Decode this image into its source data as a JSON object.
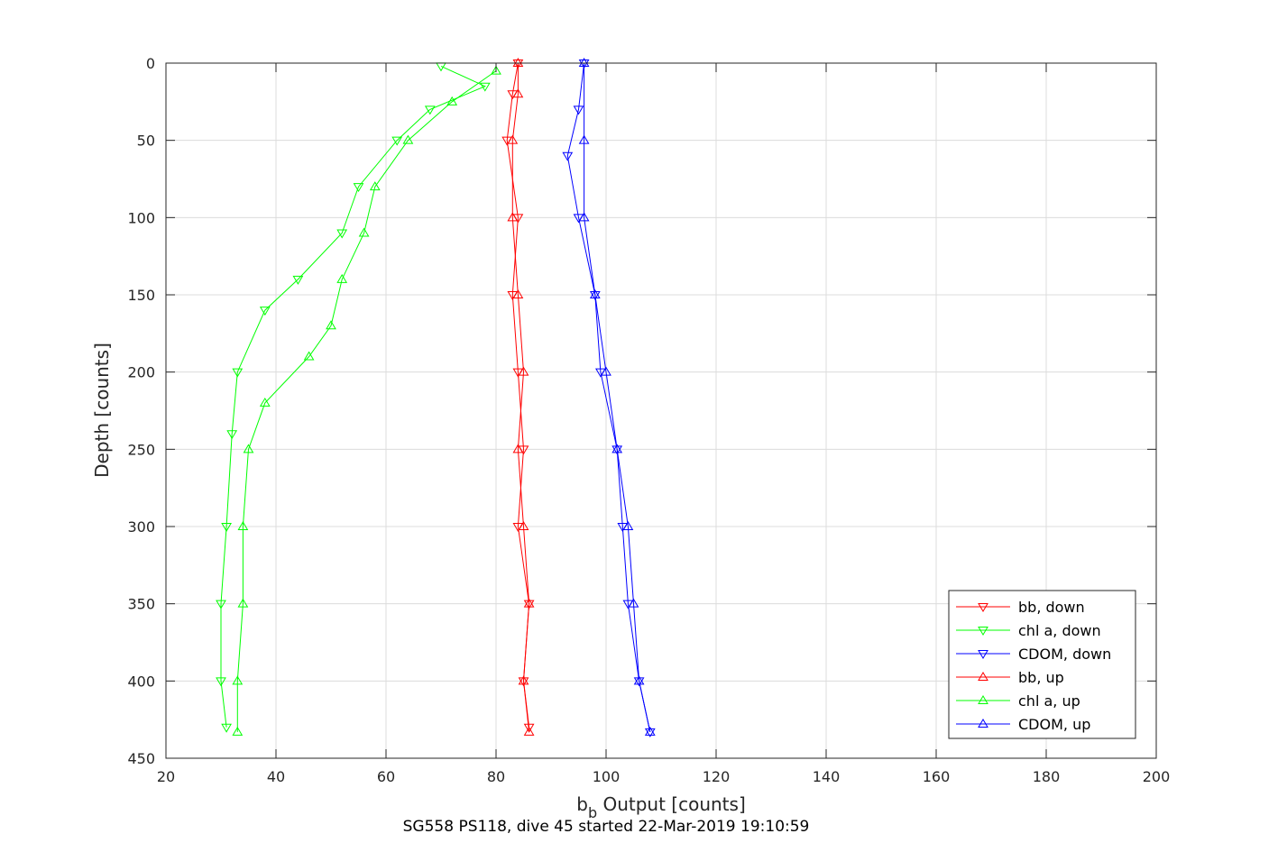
{
  "chart_data": {
    "type": "line",
    "xlabel_main": "b",
    "xlabel_sub": "b",
    "xlabel_rest": " Output [counts]",
    "ylabel": "Depth [counts]",
    "caption": "SG558 PS118, dive 45 started 22-Mar-2019 19:10:59",
    "xlim": [
      20,
      200
    ],
    "ylim": [
      0,
      450
    ],
    "y_reversed": true,
    "grid": true,
    "legend_position": "bottom-right",
    "x_ticks": [
      "20",
      "40",
      "60",
      "80",
      "100",
      "120",
      "140",
      "160",
      "180",
      "200"
    ],
    "y_ticks": [
      "0",
      "50",
      "100",
      "150",
      "200",
      "250",
      "300",
      "350",
      "400",
      "450"
    ],
    "series": [
      {
        "name": "bb, down",
        "color": "#ff0000",
        "marker": "triangle-down",
        "points": [
          [
            84,
            0
          ],
          [
            83,
            20
          ],
          [
            82,
            50
          ],
          [
            84,
            100
          ],
          [
            83,
            150
          ],
          [
            84,
            200
          ],
          [
            85,
            250
          ],
          [
            84,
            300
          ],
          [
            86,
            350
          ],
          [
            85,
            400
          ],
          [
            86,
            430
          ]
        ]
      },
      {
        "name": "chl a, down",
        "color": "#00ff00",
        "marker": "triangle-down",
        "points": [
          [
            70,
            2
          ],
          [
            78,
            15
          ],
          [
            68,
            30
          ],
          [
            62,
            50
          ],
          [
            55,
            80
          ],
          [
            52,
            110
          ],
          [
            44,
            140
          ],
          [
            38,
            160
          ],
          [
            33,
            200
          ],
          [
            32,
            240
          ],
          [
            31,
            300
          ],
          [
            30,
            350
          ],
          [
            30,
            400
          ],
          [
            31,
            430
          ]
        ]
      },
      {
        "name": "CDOM, down",
        "color": "#0000ff",
        "marker": "triangle-down",
        "points": [
          [
            96,
            0
          ],
          [
            95,
            30
          ],
          [
            93,
            60
          ],
          [
            95,
            100
          ],
          [
            98,
            150
          ],
          [
            99,
            200
          ],
          [
            102,
            250
          ],
          [
            103,
            300
          ],
          [
            104,
            350
          ],
          [
            106,
            400
          ],
          [
            108,
            433
          ]
        ]
      },
      {
        "name": "bb, up",
        "color": "#ff0000",
        "marker": "triangle-up",
        "points": [
          [
            86,
            433
          ],
          [
            85,
            400
          ],
          [
            86,
            350
          ],
          [
            85,
            300
          ],
          [
            84,
            250
          ],
          [
            85,
            200
          ],
          [
            84,
            150
          ],
          [
            83,
            100
          ],
          [
            83,
            50
          ],
          [
            84,
            20
          ],
          [
            84,
            0
          ]
        ]
      },
      {
        "name": "chl a, up",
        "color": "#00ff00",
        "marker": "triangle-up",
        "points": [
          [
            33,
            433
          ],
          [
            33,
            400
          ],
          [
            34,
            350
          ],
          [
            34,
            300
          ],
          [
            35,
            250
          ],
          [
            38,
            220
          ],
          [
            46,
            190
          ],
          [
            50,
            170
          ],
          [
            52,
            140
          ],
          [
            56,
            110
          ],
          [
            58,
            80
          ],
          [
            64,
            50
          ],
          [
            72,
            25
          ],
          [
            80,
            5
          ]
        ]
      },
      {
        "name": "CDOM, up",
        "color": "#0000ff",
        "marker": "triangle-up",
        "points": [
          [
            108,
            433
          ],
          [
            106,
            400
          ],
          [
            105,
            350
          ],
          [
            104,
            300
          ],
          [
            102,
            250
          ],
          [
            100,
            200
          ],
          [
            98,
            150
          ],
          [
            96,
            100
          ],
          [
            96,
            50
          ],
          [
            96,
            0
          ]
        ]
      }
    ]
  }
}
